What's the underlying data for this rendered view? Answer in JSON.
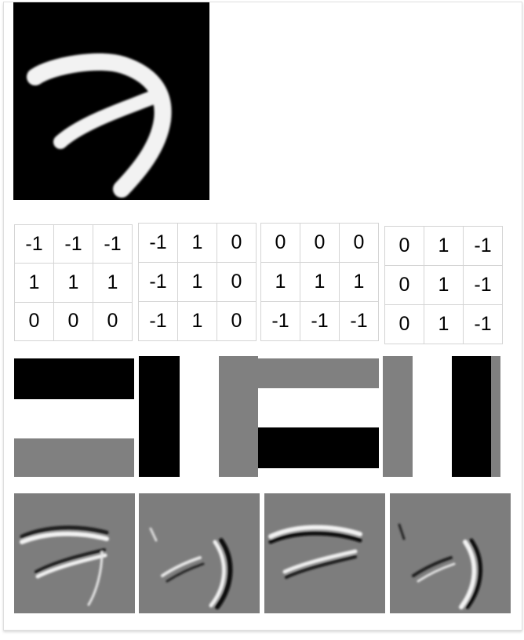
{
  "input_image": {
    "kind": "handwritten-digit-7"
  },
  "kernels": [
    [
      [
        "-1",
        "-1",
        "-1"
      ],
      [
        "1",
        "1",
        "1"
      ],
      [
        "0",
        "0",
        "0"
      ]
    ],
    [
      [
        "-1",
        "1",
        "0"
      ],
      [
        "-1",
        "1",
        "0"
      ],
      [
        "-1",
        "1",
        "0"
      ]
    ],
    [
      [
        "0",
        "0",
        "0"
      ],
      [
        "1",
        "1",
        "1"
      ],
      [
        "-1",
        "-1",
        "-1"
      ]
    ],
    [
      [
        "0",
        "1",
        "-1"
      ],
      [
        "0",
        "1",
        "-1"
      ],
      [
        "0",
        "1",
        "-1"
      ]
    ]
  ],
  "colors": {
    "black": "#000000",
    "white": "#ffffff",
    "gray": "#808080"
  }
}
